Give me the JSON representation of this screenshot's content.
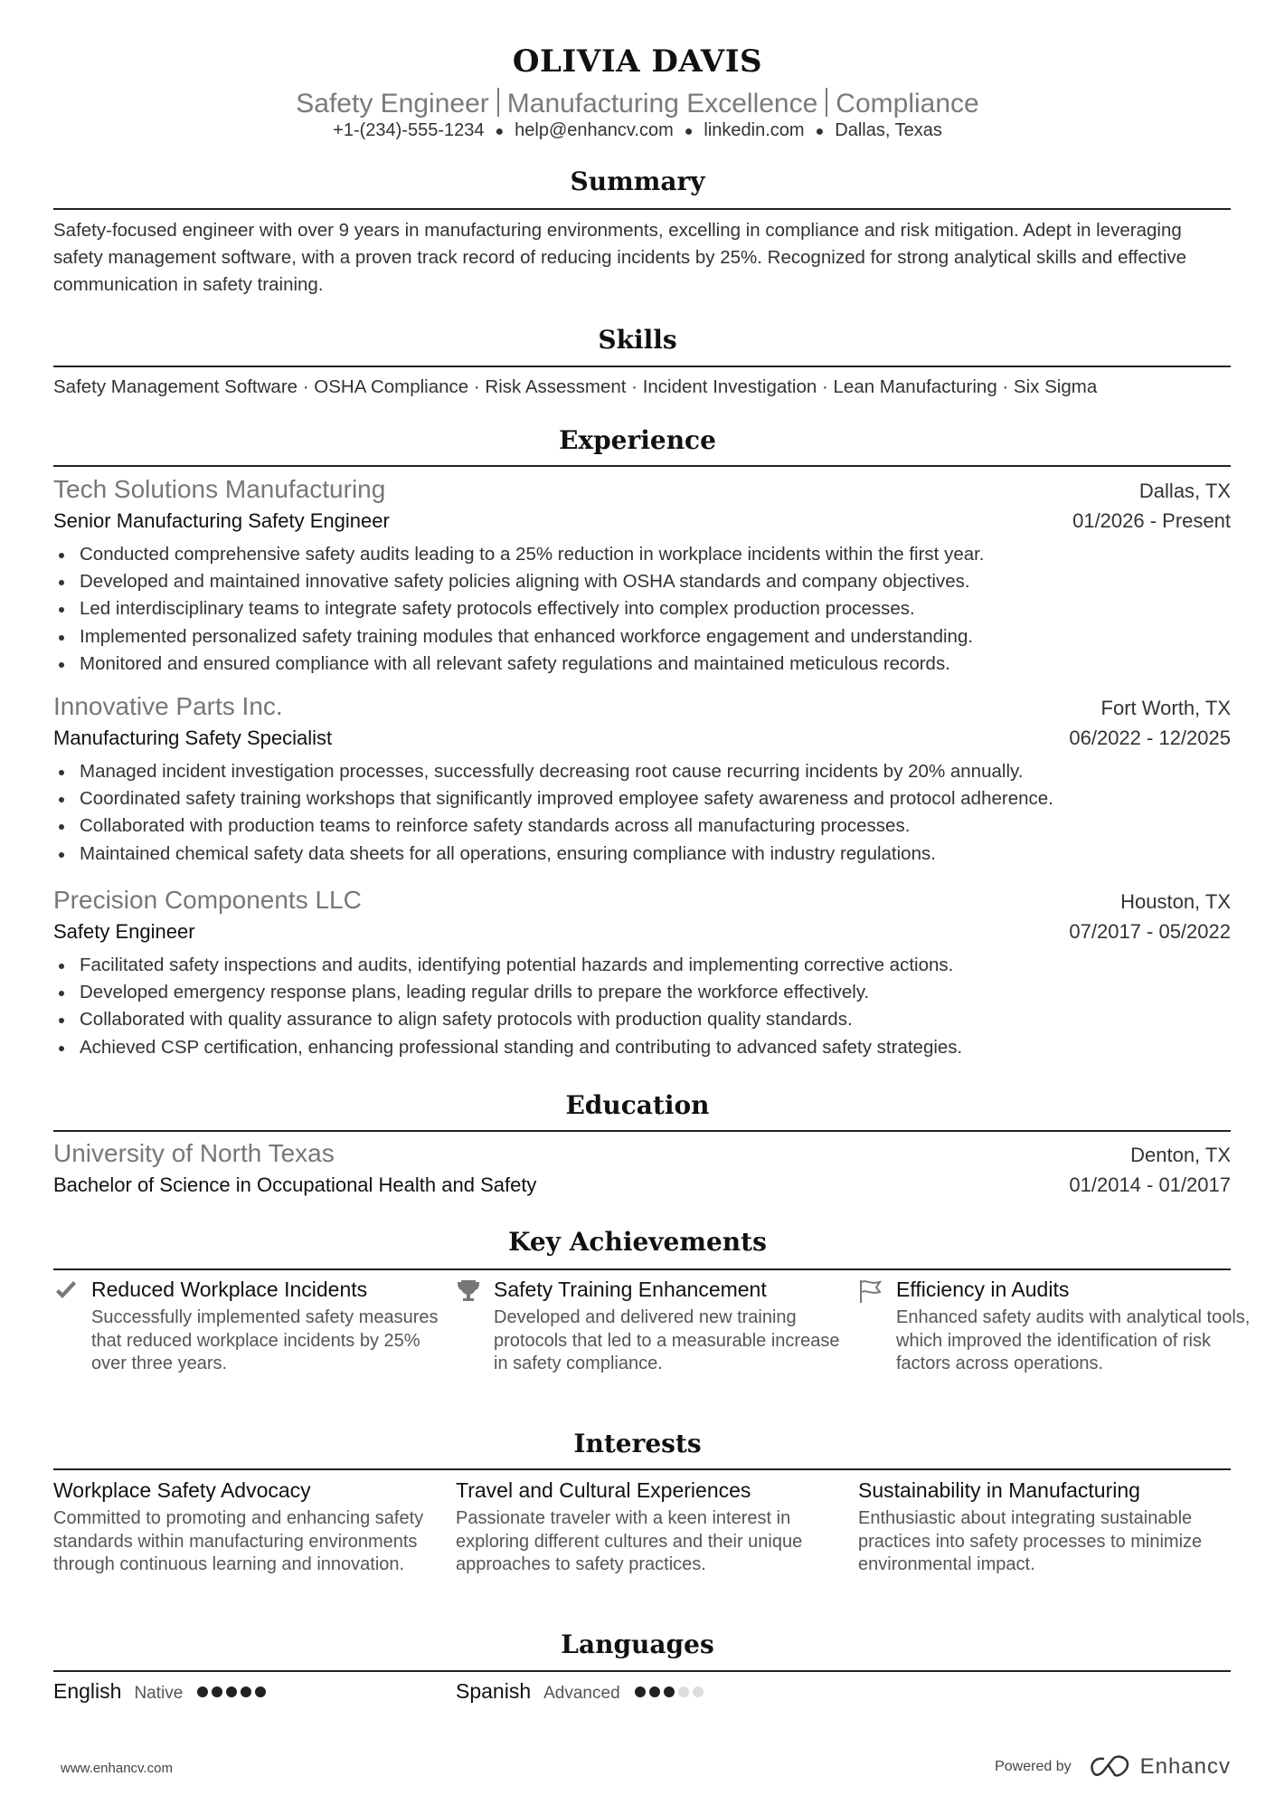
{
  "header": {
    "name": "OLIVIA DAVIS",
    "tagline": [
      "Safety Engineer",
      "Manufacturing Excellence",
      "Compliance"
    ],
    "contact": [
      "+1-(234)-555-1234",
      "help@enhancv.com",
      "linkedin.com",
      "Dallas, Texas"
    ]
  },
  "summary": {
    "heading": "Summary",
    "text": "Safety-focused engineer with over 9 years in manufacturing environments, excelling in compliance and risk mitigation. Adept in leveraging safety management software, with a proven track record of reducing incidents by 25%. Recognized for strong analytical skills and effective communication in safety training."
  },
  "skills": {
    "heading": "Skills",
    "text": "Safety Management Software · OSHA Compliance · Risk Assessment · Incident Investigation · Lean Manufacturing · Six Sigma"
  },
  "experience": {
    "heading": "Experience",
    "jobs": [
      {
        "company": "Tech Solutions Manufacturing",
        "location": "Dallas, TX",
        "role": "Senior Manufacturing Safety Engineer",
        "dates": "01/2026 - Present",
        "bullets": [
          "Conducted comprehensive safety audits leading to a 25% reduction in workplace incidents within the first year.",
          "Developed and maintained innovative safety policies aligning with OSHA standards and company objectives.",
          "Led interdisciplinary teams to integrate safety protocols effectively into complex production processes.",
          "Implemented personalized safety training modules that enhanced workforce engagement and understanding.",
          "Monitored and ensured compliance with all relevant safety regulations and maintained meticulous records."
        ]
      },
      {
        "company": "Innovative Parts Inc.",
        "location": "Fort Worth, TX",
        "role": "Manufacturing Safety Specialist",
        "dates": "06/2022 - 12/2025",
        "bullets": [
          "Managed incident investigation processes, successfully decreasing root cause recurring incidents by 20% annually.",
          "Coordinated safety training workshops that significantly improved employee safety awareness and protocol adherence.",
          "Collaborated with production teams to reinforce safety standards across all manufacturing processes.",
          "Maintained chemical safety data sheets for all operations, ensuring compliance with industry regulations."
        ]
      },
      {
        "company": "Precision Components LLC",
        "location": "Houston, TX",
        "role": "Safety Engineer",
        "dates": "07/2017 - 05/2022",
        "bullets": [
          "Facilitated safety inspections and audits, identifying potential hazards and implementing corrective actions.",
          "Developed emergency response plans, leading regular drills to prepare the workforce effectively.",
          "Collaborated with quality assurance to align safety protocols with production quality standards.",
          "Achieved CSP certification, enhancing professional standing and contributing to advanced safety strategies."
        ]
      }
    ]
  },
  "education": {
    "heading": "Education",
    "school": "University of North Texas",
    "location": "Denton, TX",
    "degree": "Bachelor of Science in Occupational Health and Safety",
    "dates": "01/2014 - 01/2017"
  },
  "achievements": {
    "heading": "Key Achievements",
    "items": [
      {
        "icon": "check-icon",
        "title": "Reduced Workplace Incidents",
        "desc": "Successfully implemented safety measures that reduced workplace incidents by 25% over three years."
      },
      {
        "icon": "trophy-icon",
        "title": "Safety Training Enhancement",
        "desc": "Developed and delivered new training protocols that led to a measurable increase in safety compliance."
      },
      {
        "icon": "flag-icon",
        "title": "Efficiency in Audits",
        "desc": "Enhanced safety audits with analytical tools, which improved the identification of risk factors across operations."
      }
    ]
  },
  "interests": {
    "heading": "Interests",
    "items": [
      {
        "title": "Workplace Safety Advocacy",
        "desc": "Committed to promoting and enhancing safety standards within manufacturing environments through continuous learning and innovation."
      },
      {
        "title": "Travel and Cultural Experiences",
        "desc": "Passionate traveler with a keen interest in exploring different cultures and their unique approaches to safety practices."
      },
      {
        "title": "Sustainability in Manufacturing",
        "desc": "Enthusiastic about integrating sustainable practices into safety processes to minimize environmental impact."
      }
    ]
  },
  "languages": {
    "heading": "Languages",
    "items": [
      {
        "name": "English",
        "level": "Native",
        "rating": 5,
        "max": 5
      },
      {
        "name": "Spanish",
        "level": "Advanced",
        "rating": 3,
        "max": 5
      }
    ]
  },
  "footer": {
    "url": "www.enhancv.com",
    "powered_by": "Powered by",
    "brand": "Enhancv"
  }
}
